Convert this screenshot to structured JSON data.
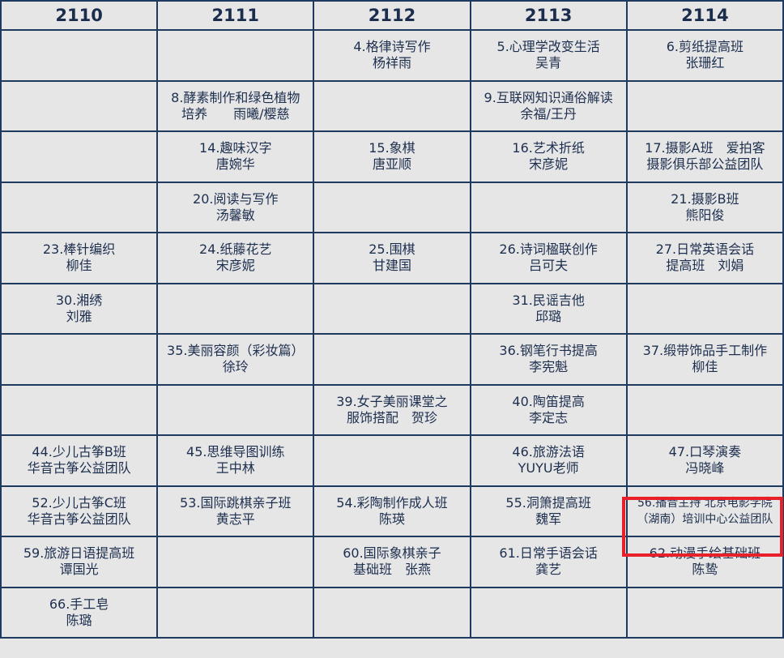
{
  "header": [
    "2110",
    "2111",
    "2112",
    "2113",
    "2114"
  ],
  "highlight_color": "#e8202a",
  "rows": [
    [
      null,
      null,
      [
        "4.格律诗写作",
        "杨祥雨"
      ],
      [
        "5.心理学改变生活",
        "吴青"
      ],
      [
        "6.剪纸提高班",
        "张珊红"
      ]
    ],
    [
      null,
      [
        "8.酵素制作和绿色植物",
        "培养　　雨曦/樱慈"
      ],
      null,
      [
        "9.互联网知识通俗解读",
        "余福/王丹"
      ],
      null
    ],
    [
      null,
      [
        "14.趣味汉字",
        "唐婉华"
      ],
      [
        "15.象棋",
        "唐亚顺"
      ],
      [
        "16.艺术折纸",
        "宋彦妮"
      ],
      [
        "17.摄影A班　爱拍客",
        "摄影俱乐部公益团队"
      ]
    ],
    [
      null,
      [
        "20.阅读与写作",
        "汤馨敏"
      ],
      null,
      null,
      [
        "21.摄影B班",
        "熊阳俊"
      ]
    ],
    [
      [
        "23.棒针编织",
        "柳佳"
      ],
      [
        "24.纸藤花艺",
        "宋彦妮"
      ],
      [
        "25.围棋",
        "甘建国"
      ],
      [
        "26.诗词楹联创作",
        "吕可夫"
      ],
      [
        "27.日常英语会话",
        "提高班　刘娟"
      ]
    ],
    [
      [
        "30.湘绣",
        "刘雅"
      ],
      null,
      null,
      [
        "31.民谣吉他",
        "邱璐"
      ],
      null
    ],
    [
      null,
      [
        "35.美丽容颜（彩妆篇）",
        "徐玲"
      ],
      null,
      [
        "36.钢笔行书提高",
        "李宪魁"
      ],
      [
        "37.缎带饰品手工制作",
        "柳佳"
      ]
    ],
    [
      null,
      null,
      [
        "39.女子美丽课堂之",
        "服饰搭配　贺珍"
      ],
      [
        "40.陶笛提高",
        "李定志"
      ],
      null
    ],
    [
      [
        "44.少儿古筝B班",
        "华音古筝公益团队"
      ],
      [
        "45.思维导图训练",
        "王中林"
      ],
      null,
      [
        "46.旅游法语",
        "YUYU老师"
      ],
      [
        "47.口琴演奏",
        "冯晓峰"
      ]
    ],
    [
      [
        "52.少儿古筝C班",
        "华音古筝公益团队"
      ],
      [
        "53.国际跳棋亲子班",
        "黄志平"
      ],
      [
        "54.彩陶制作成人班",
        "陈瑛"
      ],
      [
        "55.洞箫提高班",
        "魏军"
      ],
      [
        "56.播音主持 北京电影学院",
        "（湖南）培训中心公益团队"
      ]
    ],
    [
      [
        "59.旅游日语提高班",
        "谭国光"
      ],
      null,
      [
        "60.国际象棋亲子",
        "基础班　张燕"
      ],
      [
        "61.日常手语会话",
        "龚艺"
      ],
      [
        "62.动漫手绘基础班",
        "陈鸷"
      ]
    ],
    [
      [
        "66.手工皂",
        "陈璐"
      ],
      null,
      null,
      null,
      null
    ]
  ]
}
